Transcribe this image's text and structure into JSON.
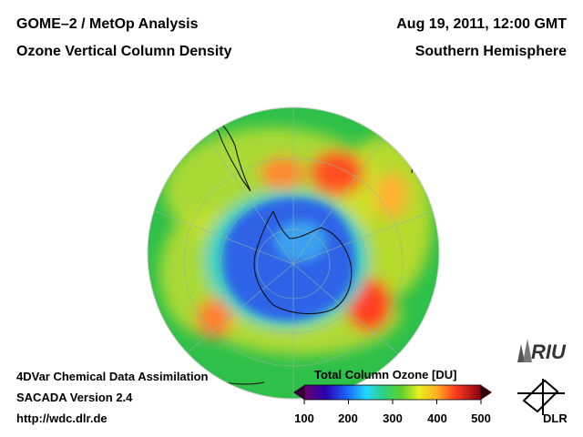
{
  "header": {
    "title_left_1": "GOME–2 / MetOp Analysis",
    "title_left_2": "Ozone Vertical Column Density",
    "title_right_1": "Aug 19, 2011, 12:00 GMT",
    "title_right_2": "Southern Hemisphere"
  },
  "footer": {
    "line1": "4DVar Chemical Data Assimilation",
    "line2": "SACADA Version 2.4",
    "line3": "http://wdc.dlr.de"
  },
  "colorbar": {
    "title": "Total Column Ozone [DU]",
    "ticks": [
      "100",
      "200",
      "300",
      "400",
      "500"
    ]
  },
  "logos": {
    "riu": "RIU",
    "dlr": "DLR"
  },
  "colors": {
    "background": "#ffffff",
    "ocean_green": "#2ec04a",
    "hole_blue": "#2f64e8"
  }
}
